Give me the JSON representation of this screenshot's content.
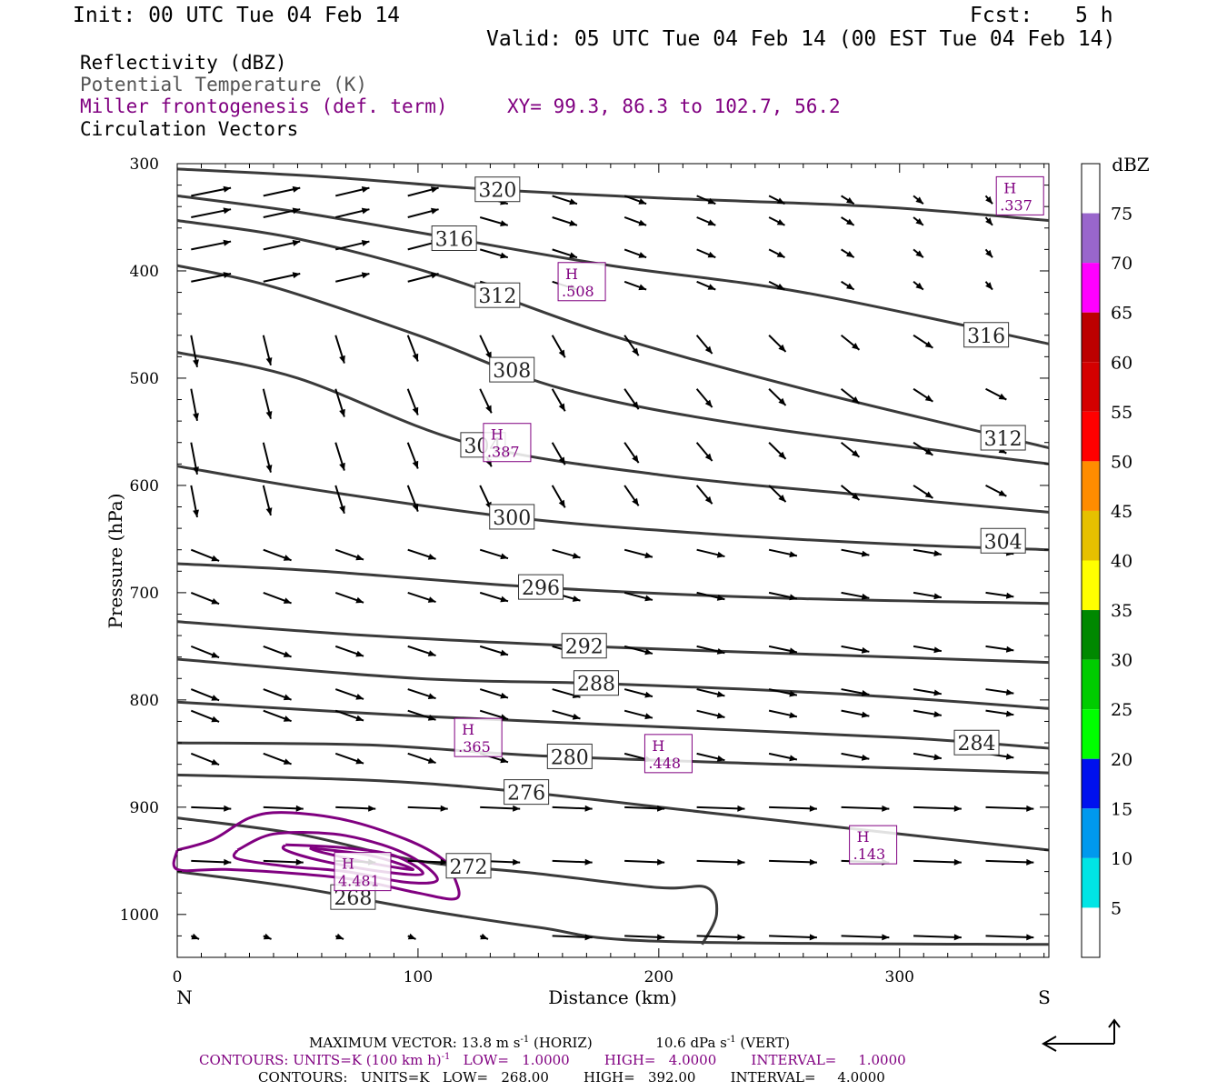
{
  "header": {
    "init": "Init: 00 UTC Tue 04 Feb 14",
    "fcst_label": "Fcst:",
    "fcst_value": "5 h",
    "valid": "Valid: 05 UTC Tue 04 Feb 14 (00 EST Tue 04 Feb 14)"
  },
  "legend": {
    "reflectivity": "Reflectivity (dBZ)",
    "theta": "Potential Temperature (K)",
    "frontogenesis": "Miller frontogenesis (def. term)",
    "xy": "XY=  99.3, 86.3 to 102.7, 56.2",
    "vectors": "Circulation Vectors"
  },
  "colors": {
    "theta": "#3a3a3a",
    "frontogenesis": "#800080",
    "vectors": "#000000"
  },
  "chart_data": {
    "type": "cross-section",
    "xlabel": "Distance (km)",
    "ylabel": "Pressure (hPa)",
    "xlim": [
      0,
      362
    ],
    "ylim": [
      300,
      1040
    ],
    "y_inverted": true,
    "x_ticks": [
      "0",
      "100",
      "200",
      "300"
    ],
    "x_tick_values": [
      0,
      100,
      200,
      300
    ],
    "y_ticks": [
      "300",
      "400",
      "500",
      "600",
      "700",
      "800",
      "900",
      "1000"
    ],
    "y_tick_values": [
      300,
      400,
      500,
      600,
      700,
      800,
      900,
      1000
    ],
    "left_end_label": "N",
    "right_end_label": "S",
    "colorbar": {
      "title": "dBZ",
      "labels": [
        "5",
        "10",
        "15",
        "20",
        "25",
        "30",
        "35",
        "40",
        "45",
        "50",
        "55",
        "60",
        "65",
        "70",
        "75"
      ],
      "colors": [
        "#ffffff",
        "#00e5e5",
        "#0099ee",
        "#0011ee",
        "#00ff00",
        "#00cc00",
        "#008800",
        "#ffff00",
        "#e6c000",
        "#ff8c00",
        "#ff0000",
        "#d40000",
        "#bc0000",
        "#ff00ff",
        "#9966cc",
        "#ffffff"
      ]
    },
    "theta_contours": [
      {
        "label": "320",
        "points": [
          [
            0,
            305
          ],
          [
            60,
            312
          ],
          [
            130,
            324
          ],
          [
            200,
            332
          ],
          [
            290,
            340
          ],
          [
            362,
            353
          ]
        ],
        "label_x": 133
      },
      {
        "label": "316",
        "points": [
          [
            0,
            330
          ],
          [
            50,
            345
          ],
          [
            110,
            368
          ],
          [
            180,
            395
          ],
          [
            260,
            420
          ],
          [
            362,
            468
          ]
        ],
        "label_x": 115
      },
      {
        "label": "316",
        "points": null,
        "label_x": 336,
        "label_y": 460
      },
      {
        "label": "312",
        "points": [
          [
            0,
            353
          ],
          [
            50,
            370
          ],
          [
            110,
            405
          ],
          [
            180,
            460
          ],
          [
            260,
            510
          ],
          [
            362,
            565
          ]
        ],
        "label_x": 133
      },
      {
        "label": "312",
        "points": null,
        "label_x": 343,
        "label_y": 556
      },
      {
        "label": "308",
        "points": [
          [
            0,
            395
          ],
          [
            40,
            415
          ],
          [
            100,
            460
          ],
          [
            160,
            510
          ],
          [
            240,
            545
          ],
          [
            362,
            580
          ]
        ],
        "label_x": 139
      },
      {
        "label": "304",
        "points": [
          [
            0,
            476
          ],
          [
            50,
            500
          ],
          [
            120,
            560
          ],
          [
            200,
            590
          ],
          [
            290,
            610
          ],
          [
            362,
            625
          ]
        ],
        "label_x": 127
      },
      {
        "label": "304",
        "points": null,
        "label_x": 343,
        "label_y": 652
      },
      {
        "label": "300",
        "points": [
          [
            0,
            582
          ],
          [
            60,
            605
          ],
          [
            140,
            630
          ],
          [
            220,
            645
          ],
          [
            300,
            655
          ],
          [
            362,
            660
          ]
        ],
        "label_x": 139
      },
      {
        "label": "296",
        "points": [
          [
            0,
            673
          ],
          [
            60,
            680
          ],
          [
            150,
            695
          ],
          [
            250,
            705
          ],
          [
            362,
            710
          ]
        ],
        "label_x": 151
      },
      {
        "label": "292",
        "points": [
          [
            0,
            727
          ],
          [
            80,
            740
          ],
          [
            170,
            750
          ],
          [
            270,
            758
          ],
          [
            362,
            765
          ]
        ],
        "label_x": 169
      },
      {
        "label": "288",
        "points": [
          [
            0,
            762
          ],
          [
            100,
            780
          ],
          [
            180,
            785
          ],
          [
            280,
            795
          ],
          [
            362,
            808
          ]
        ],
        "label_x": 174
      },
      {
        "label": "284",
        "points": [
          [
            0,
            802
          ],
          [
            100,
            815
          ],
          [
            200,
            825
          ],
          [
            300,
            835
          ],
          [
            362,
            845
          ]
        ],
        "label_x": 332
      },
      {
        "label": "280",
        "points": [
          [
            0,
            840
          ],
          [
            80,
            842
          ],
          [
            150,
            852
          ],
          [
            250,
            860
          ],
          [
            362,
            868
          ]
        ],
        "label_x": 163
      },
      {
        "label": "276",
        "points": [
          [
            0,
            870
          ],
          [
            80,
            875
          ],
          [
            140,
            885
          ],
          [
            220,
            905
          ],
          [
            300,
            925
          ],
          [
            362,
            940
          ]
        ],
        "label_x": 145
      },
      {
        "label": "272",
        "points": [
          [
            0,
            910
          ],
          [
            50,
            925
          ],
          [
            100,
            950
          ],
          [
            150,
            962
          ],
          [
            200,
            975
          ],
          [
            220,
            975
          ],
          [
            224,
            1000
          ],
          [
            218,
            1028
          ]
        ],
        "label_x": 121
      },
      {
        "label": "268",
        "points": [
          [
            0,
            960
          ],
          [
            50,
            975
          ],
          [
            100,
            995
          ],
          [
            150,
            1012
          ],
          [
            200,
            1025
          ],
          [
            362,
            1028
          ]
        ],
        "label_x": 73
      }
    ],
    "frontogenesis_maxima": [
      {
        "label": "H",
        "value": ".337",
        "x": 350,
        "y": 330
      },
      {
        "label": "H",
        "value": ".508",
        "x": 168,
        "y": 410
      },
      {
        "label": "H",
        "value": ".387",
        "x": 137,
        "y": 560
      },
      {
        "label": "H",
        "value": ".365",
        "x": 125,
        "y": 835
      },
      {
        "label": "H",
        "value": ".448",
        "x": 204,
        "y": 850
      },
      {
        "label": "H",
        "value": ".143",
        "x": 289,
        "y": 935
      },
      {
        "label": "H",
        "value": "4.481",
        "x": 77,
        "y": 960
      }
    ],
    "frontogenesis_contours": [
      {
        "value": 1,
        "points": [
          [
            0,
            940
          ],
          [
            15,
            930
          ],
          [
            30,
            910
          ],
          [
            45,
            905
          ],
          [
            70,
            912
          ],
          [
            95,
            930
          ],
          [
            110,
            948
          ],
          [
            115,
            965
          ],
          [
            116,
            985
          ],
          [
            100,
            980
          ],
          [
            75,
            968
          ],
          [
            50,
            962
          ],
          [
            20,
            958
          ],
          [
            0,
            958
          ]
        ]
      },
      {
        "value": 2,
        "points": [
          [
            25,
            940
          ],
          [
            40,
            925
          ],
          [
            65,
            925
          ],
          [
            85,
            935
          ],
          [
            100,
            950
          ],
          [
            108,
            968
          ],
          [
            95,
            970
          ],
          [
            70,
            960
          ],
          [
            45,
            955
          ],
          [
            25,
            948
          ]
        ]
      },
      {
        "value": 3,
        "points": [
          [
            45,
            935
          ],
          [
            70,
            938
          ],
          [
            90,
            945
          ],
          [
            102,
            962
          ],
          [
            85,
            960
          ],
          [
            60,
            950
          ],
          [
            45,
            940
          ]
        ]
      },
      {
        "value": 4,
        "points": [
          [
            55,
            938
          ],
          [
            80,
            945
          ],
          [
            98,
            958
          ],
          [
            80,
            952
          ],
          [
            60,
            942
          ]
        ]
      }
    ],
    "vectors": {
      "max_horizontal": "13.8",
      "max_vertical": "10.6"
    },
    "footer": {
      "line1_a": "MAXIMUM VECTOR:  13.8  m s",
      "line1_a_sup": "-1",
      "line1_b": " (HORIZ)",
      "line1_c": "10.6  dPa s",
      "line1_c_sup": "-1",
      "line1_d": " (VERT)",
      "line2_a": "CONTOURS:  UNITS=K (100 km h)",
      "line2_sup": "-1",
      "line2_b": "   LOW=   1.0000        HIGH=   4.0000        INTERVAL=     1.0000",
      "line3": "CONTOURS:   UNITS=K   LOW=   268.00        HIGH=   392.00        INTERVAL=     4.0000"
    }
  }
}
